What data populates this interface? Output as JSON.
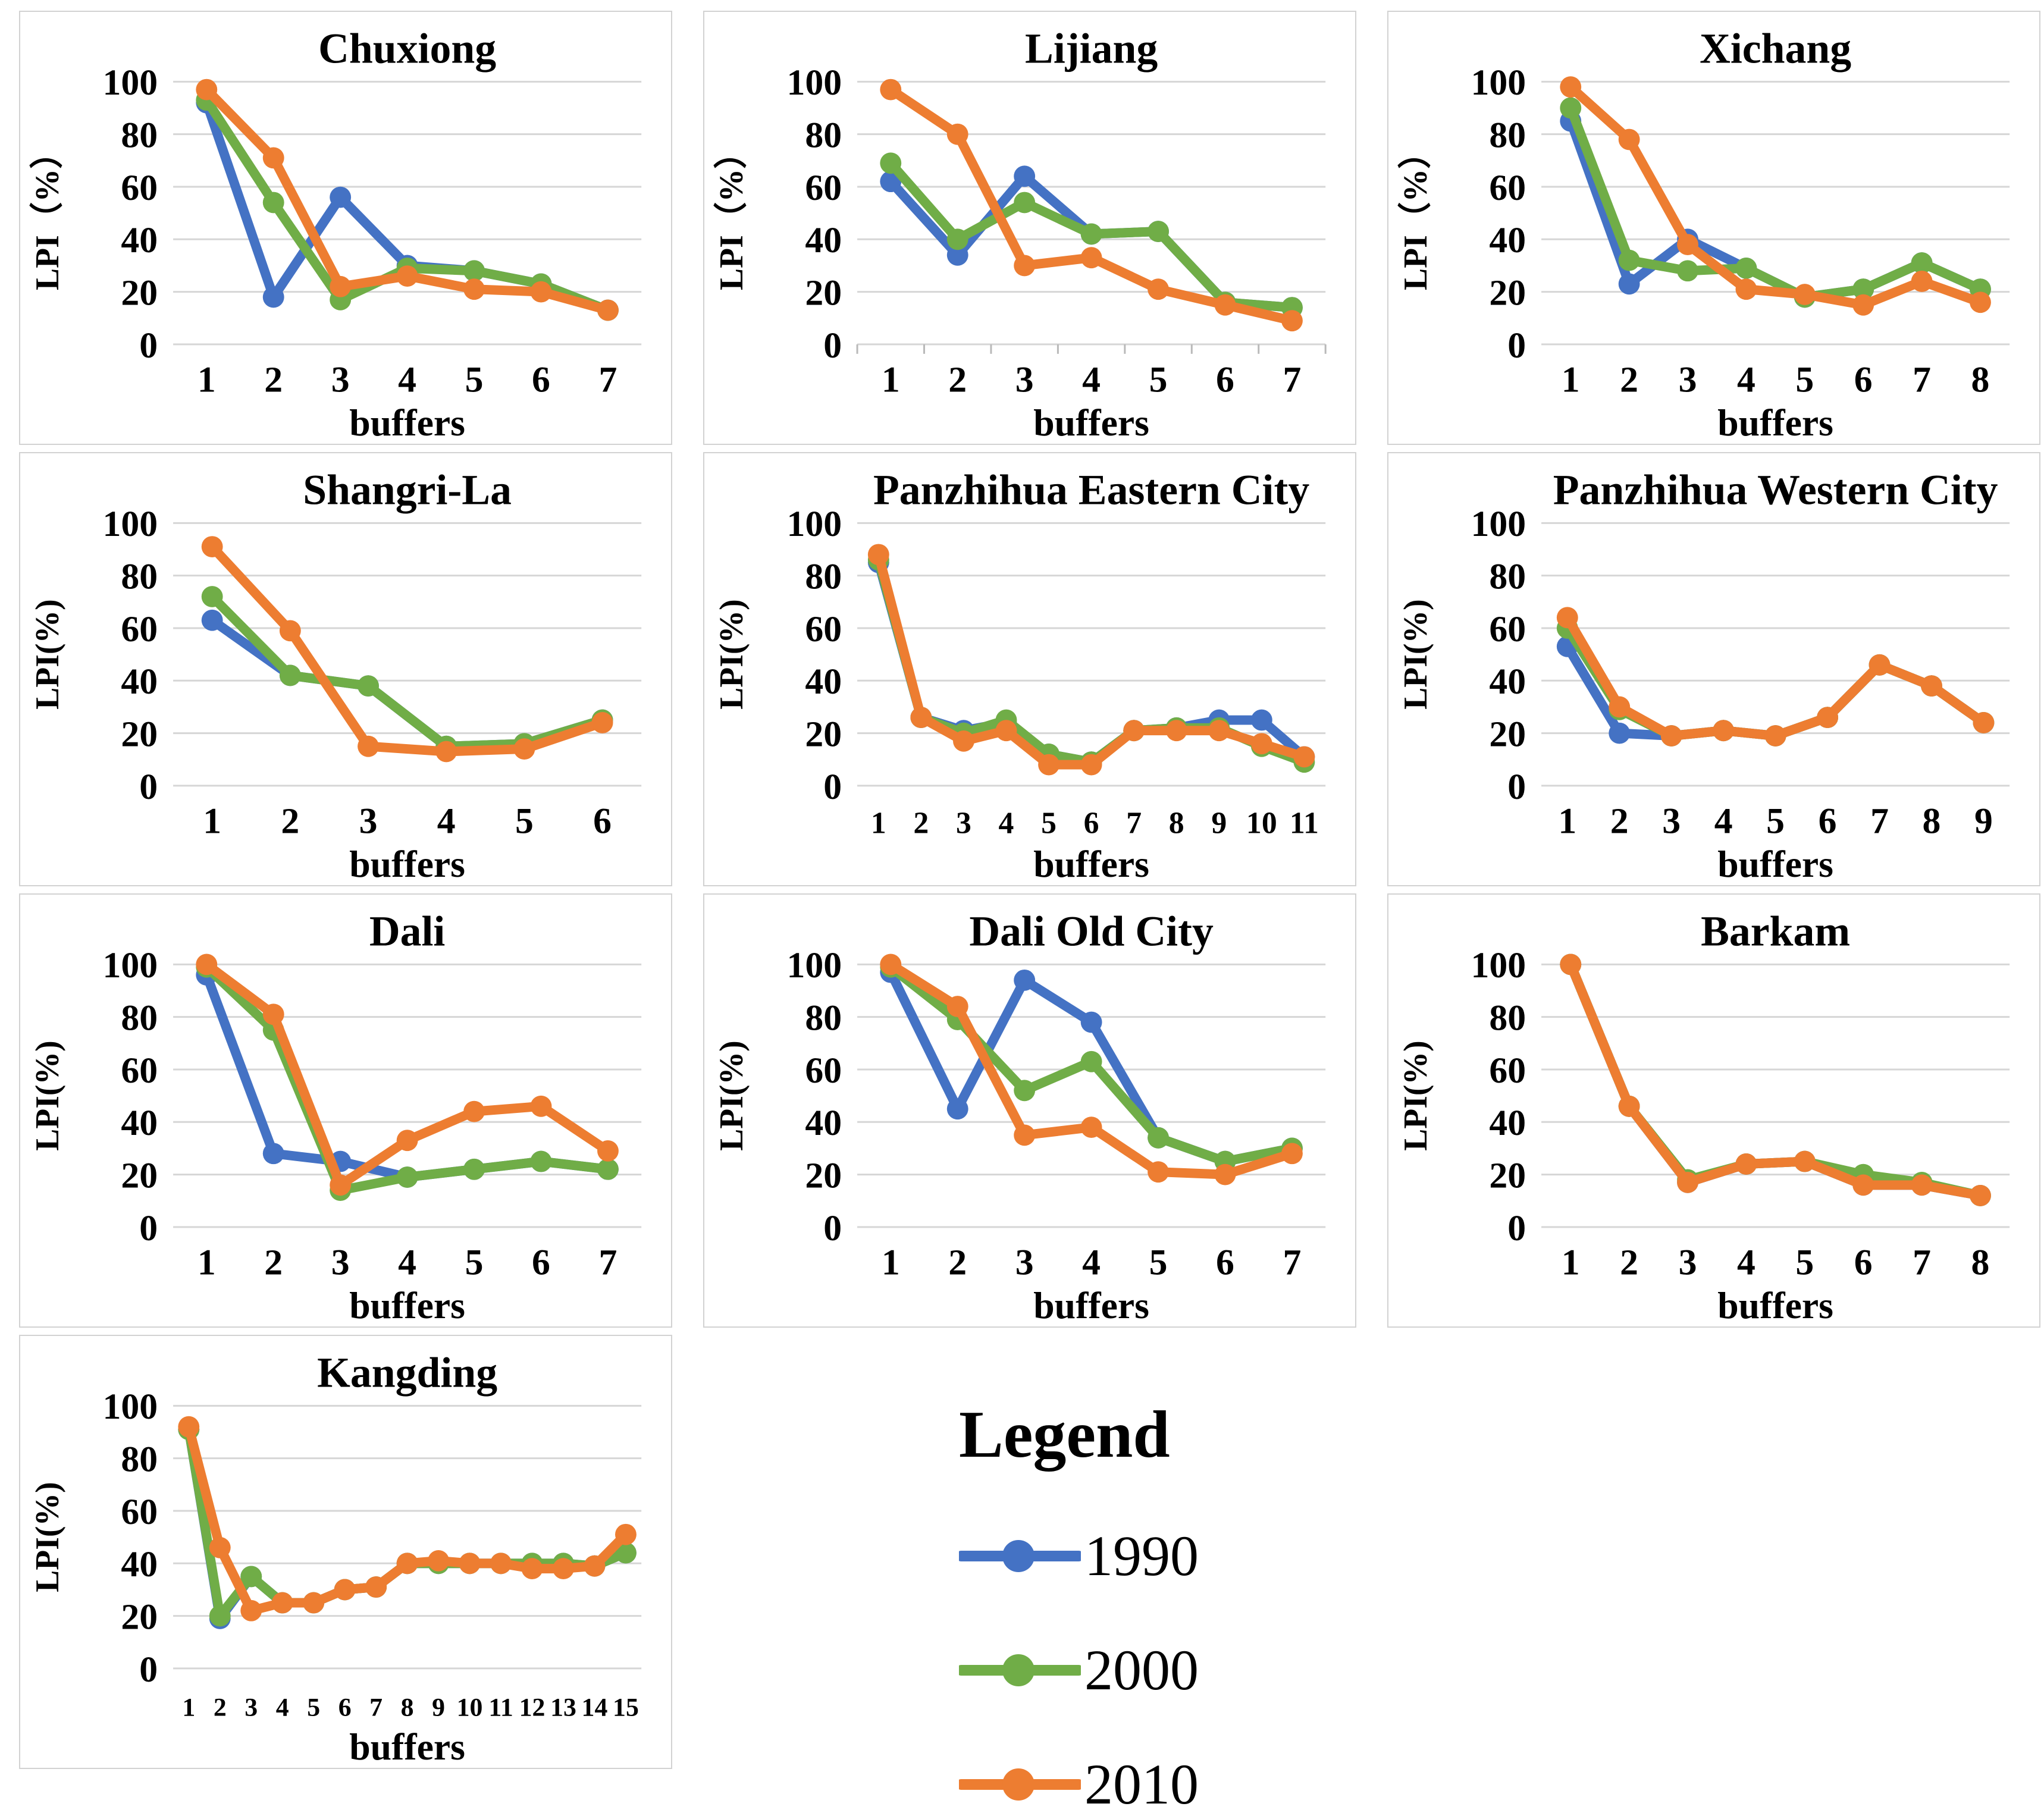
{
  "page": {
    "background": "#ffffff",
    "grid_color": "#d6d6d6",
    "panel_border_color": "#d2d2d2",
    "text_color": "#000000"
  },
  "legend": {
    "title": "Legend",
    "items": [
      {
        "label": "1990",
        "color": "#4472C4"
      },
      {
        "label": "2000",
        "color": "#70AD47"
      },
      {
        "label": "2010",
        "color": "#ED7D31"
      }
    ]
  },
  "chart_data": [
    {
      "type": "line",
      "title": "Chuxiong",
      "ylabel": "LPI（%）",
      "xlabel": "buffers",
      "ylim": [
        0,
        100
      ],
      "yticks": [
        0,
        20,
        40,
        60,
        80,
        100
      ],
      "grid": true,
      "legend_position": "none",
      "x_axis_ticks": false,
      "categories": [
        "1",
        "2",
        "3",
        "4",
        "5",
        "6",
        "7"
      ],
      "series": [
        {
          "name": "1990",
          "color": "#4472C4",
          "values": [
            92,
            18,
            56,
            30,
            28,
            23,
            13
          ]
        },
        {
          "name": "2000",
          "color": "#70AD47",
          "values": [
            93,
            54,
            17,
            29,
            28,
            23,
            13
          ]
        },
        {
          "name": "2010",
          "color": "#ED7D31",
          "values": [
            97,
            71,
            22,
            26,
            21,
            20,
            13
          ]
        }
      ]
    },
    {
      "type": "line",
      "title": "Lijiang",
      "ylabel": "LPI（%）",
      "xlabel": "buffers",
      "ylim": [
        0,
        100
      ],
      "yticks": [
        0,
        20,
        40,
        60,
        80,
        100
      ],
      "grid": true,
      "legend_position": "none",
      "x_axis_ticks": true,
      "categories": [
        "1",
        "2",
        "3",
        "4",
        "5",
        "6",
        "7"
      ],
      "series": [
        {
          "name": "1990",
          "color": "#4472C4",
          "values": [
            62,
            34,
            64,
            42,
            43,
            16,
            14
          ]
        },
        {
          "name": "2000",
          "color": "#70AD47",
          "values": [
            69,
            40,
            54,
            42,
            43,
            16,
            14
          ]
        },
        {
          "name": "2010",
          "color": "#ED7D31",
          "values": [
            97,
            80,
            30,
            33,
            21,
            15,
            9
          ]
        }
      ]
    },
    {
      "type": "line",
      "title": "Xichang",
      "ylabel": "LPI（%）",
      "xlabel": "buffers",
      "ylim": [
        0,
        100
      ],
      "yticks": [
        0,
        20,
        40,
        60,
        80,
        100
      ],
      "grid": true,
      "legend_position": "none",
      "x_axis_ticks": false,
      "categories": [
        "1",
        "2",
        "3",
        "4",
        "5",
        "6",
        "7",
        "8"
      ],
      "series": [
        {
          "name": "1990",
          "color": "#4472C4",
          "values": [
            85,
            23,
            40,
            29,
            18,
            21,
            31,
            21
          ]
        },
        {
          "name": "2000",
          "color": "#70AD47",
          "values": [
            90,
            32,
            28,
            29,
            18,
            21,
            31,
            21
          ]
        },
        {
          "name": "2010",
          "color": "#ED7D31",
          "values": [
            98,
            78,
            38,
            21,
            19,
            15,
            24,
            16
          ]
        }
      ]
    },
    {
      "type": "line",
      "title": "Shangri-La",
      "ylabel": "LPI(%)",
      "xlabel": "buffers",
      "ylim": [
        0,
        100
      ],
      "yticks": [
        0,
        20,
        40,
        60,
        80,
        100
      ],
      "grid": true,
      "legend_position": "none",
      "x_axis_ticks": false,
      "categories": [
        "1",
        "2",
        "3",
        "4",
        "5",
        "6"
      ],
      "series": [
        {
          "name": "1990",
          "color": "#4472C4",
          "values": [
            63,
            42,
            38,
            15,
            16,
            25
          ]
        },
        {
          "name": "2000",
          "color": "#70AD47",
          "values": [
            72,
            42,
            38,
            15,
            16,
            25
          ]
        },
        {
          "name": "2010",
          "color": "#ED7D31",
          "values": [
            91,
            59,
            15,
            13,
            14,
            24
          ]
        }
      ]
    },
    {
      "type": "line",
      "title": "Panzhihua Eastern City",
      "ylabel": "LPI(%)",
      "xlabel": "buffers",
      "ylim": [
        0,
        100
      ],
      "yticks": [
        0,
        20,
        40,
        60,
        80,
        100
      ],
      "grid": true,
      "legend_position": "none",
      "x_axis_ticks": false,
      "categories": [
        "1",
        "2",
        "3",
        "4",
        "5",
        "6",
        "7",
        "8",
        "9",
        "10",
        "11"
      ],
      "series": [
        {
          "name": "1990",
          "color": "#4472C4",
          "values": [
            85,
            26,
            21,
            24,
            12,
            9,
            21,
            22,
            25,
            25,
            11
          ]
        },
        {
          "name": "2000",
          "color": "#70AD47",
          "values": [
            86,
            26,
            20,
            25,
            12,
            9,
            21,
            22,
            22,
            15,
            9
          ]
        },
        {
          "name": "2010",
          "color": "#ED7D31",
          "values": [
            88,
            26,
            17,
            21,
            8,
            8,
            21,
            21,
            21,
            16,
            11
          ]
        }
      ]
    },
    {
      "type": "line",
      "title": "Panzhihua Western City",
      "ylabel": "LPI(%)",
      "xlabel": "buffers",
      "ylim": [
        0,
        100
      ],
      "yticks": [
        0,
        20,
        40,
        60,
        80,
        100
      ],
      "grid": true,
      "legend_position": "none",
      "x_axis_ticks": false,
      "categories": [
        "1",
        "2",
        "3",
        "4",
        "5",
        "6",
        "7",
        "8",
        "9"
      ],
      "series": [
        {
          "name": "1990",
          "color": "#4472C4",
          "values": [
            53,
            20,
            19,
            21,
            19,
            26,
            46,
            38,
            24
          ]
        },
        {
          "name": "2000",
          "color": "#70AD47",
          "values": [
            60,
            29,
            19,
            21,
            19,
            26,
            46,
            38,
            24
          ]
        },
        {
          "name": "2010",
          "color": "#ED7D31",
          "values": [
            64,
            30,
            19,
            21,
            19,
            26,
            46,
            38,
            24
          ]
        }
      ]
    },
    {
      "type": "line",
      "title": "Dali",
      "ylabel": "LPI(%)",
      "xlabel": "buffers",
      "ylim": [
        0,
        100
      ],
      "yticks": [
        0,
        20,
        40,
        60,
        80,
        100
      ],
      "grid": true,
      "legend_position": "none",
      "x_axis_ticks": false,
      "categories": [
        "1",
        "2",
        "3",
        "4",
        "5",
        "6",
        "7"
      ],
      "series": [
        {
          "name": "1990",
          "color": "#4472C4",
          "values": [
            96,
            28,
            25,
            19,
            22,
            25,
            22
          ]
        },
        {
          "name": "2000",
          "color": "#70AD47",
          "values": [
            99,
            75,
            14,
            19,
            22,
            25,
            22
          ]
        },
        {
          "name": "2010",
          "color": "#ED7D31",
          "values": [
            100,
            81,
            16,
            33,
            44,
            46,
            29
          ]
        }
      ]
    },
    {
      "type": "line",
      "title": "Dali Old City",
      "ylabel": "LPI(%)",
      "xlabel": "buffers",
      "ylim": [
        0,
        100
      ],
      "yticks": [
        0,
        20,
        40,
        60,
        80,
        100
      ],
      "grid": true,
      "legend_position": "none",
      "x_axis_ticks": false,
      "categories": [
        "1",
        "2",
        "3",
        "4",
        "5",
        "6",
        "7"
      ],
      "series": [
        {
          "name": "1990",
          "color": "#4472C4",
          "values": [
            97,
            45,
            94,
            78,
            34,
            25,
            30
          ]
        },
        {
          "name": "2000",
          "color": "#70AD47",
          "values": [
            99,
            79,
            52,
            63,
            34,
            25,
            30
          ]
        },
        {
          "name": "2010",
          "color": "#ED7D31",
          "values": [
            100,
            84,
            35,
            38,
            21,
            20,
            28
          ]
        }
      ]
    },
    {
      "type": "line",
      "title": "Barkam",
      "ylabel": "LPI(%)",
      "xlabel": "buffers",
      "ylim": [
        0,
        100
      ],
      "yticks": [
        0,
        20,
        40,
        60,
        80,
        100
      ],
      "grid": true,
      "legend_position": "none",
      "x_axis_ticks": false,
      "categories": [
        "1",
        "2",
        "3",
        "4",
        "5",
        "6",
        "7",
        "8"
      ],
      "series": [
        {
          "name": "1990",
          "color": "#4472C4",
          "values": [
            100,
            46,
            17,
            24,
            25,
            16,
            16,
            12
          ]
        },
        {
          "name": "2000",
          "color": "#70AD47",
          "values": [
            100,
            46,
            18,
            24,
            25,
            20,
            17,
            12
          ]
        },
        {
          "name": "2010",
          "color": "#ED7D31",
          "values": [
            100,
            46,
            17,
            24,
            25,
            16,
            16,
            12
          ]
        }
      ]
    },
    {
      "type": "line",
      "title": "Kangding",
      "ylabel": "LPI(%)",
      "xlabel": "buffers",
      "ylim": [
        0,
        100
      ],
      "yticks": [
        0,
        20,
        40,
        60,
        80,
        100
      ],
      "grid": true,
      "legend_position": "none",
      "x_axis_ticks": false,
      "categories": [
        "1",
        "2",
        "3",
        "4",
        "5",
        "6",
        "7",
        "8",
        "9",
        "10",
        "11",
        "12",
        "13",
        "14",
        "15"
      ],
      "series": [
        {
          "name": "1990",
          "color": "#4472C4",
          "values": [
            91,
            19,
            35,
            25,
            25,
            30,
            31,
            40,
            40,
            40,
            40,
            40,
            40,
            39,
            44
          ]
        },
        {
          "name": "2000",
          "color": "#70AD47",
          "values": [
            91,
            20,
            35,
            25,
            25,
            30,
            31,
            40,
            40,
            40,
            40,
            40,
            40,
            39,
            44
          ]
        },
        {
          "name": "2010",
          "color": "#ED7D31",
          "values": [
            92,
            46,
            22,
            25,
            25,
            30,
            31,
            40,
            41,
            40,
            40,
            38,
            38,
            39,
            51
          ]
        }
      ]
    }
  ]
}
